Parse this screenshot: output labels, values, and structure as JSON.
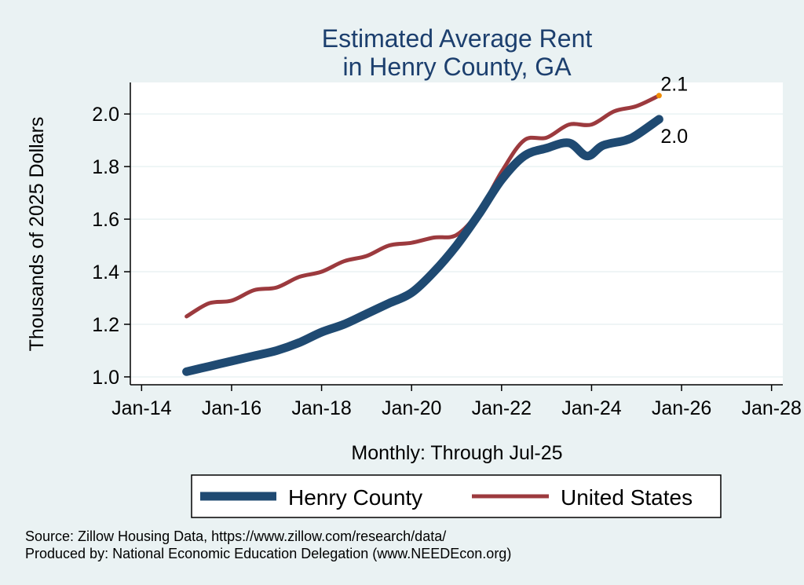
{
  "chart_data": {
    "type": "line",
    "title": [
      "Estimated Average Rent",
      "in Henry County, GA"
    ],
    "xlabel": "Monthly: Through Jul-25",
    "ylabel": "Thousands of 2025 Dollars",
    "ylim": [
      0.97,
      2.12
    ],
    "yticks": [
      1.0,
      1.2,
      1.4,
      1.6,
      1.8,
      2.0
    ],
    "ytick_labels": [
      "1.0",
      "1.2",
      "1.4",
      "1.6",
      "1.8",
      "2.0"
    ],
    "xlim": [
      2013.75,
      2028.25
    ],
    "xticks": [
      2014,
      2016,
      2018,
      2020,
      2022,
      2024,
      2026,
      2028
    ],
    "xtick_labels": [
      "Jan-14",
      "Jan-16",
      "Jan-18",
      "Jan-20",
      "Jan-22",
      "Jan-24",
      "Jan-26",
      "Jan-28"
    ],
    "grid": true,
    "legend_position": "bottom",
    "series": [
      {
        "name": "Henry County",
        "color": "#1f4a72",
        "end_label": "2.0",
        "points": [
          [
            2015.0,
            1.02
          ],
          [
            2015.5,
            1.04
          ],
          [
            2016.0,
            1.06
          ],
          [
            2016.5,
            1.08
          ],
          [
            2017.0,
            1.1
          ],
          [
            2017.5,
            1.13
          ],
          [
            2018.0,
            1.17
          ],
          [
            2018.5,
            1.2
          ],
          [
            2019.0,
            1.24
          ],
          [
            2019.5,
            1.28
          ],
          [
            2020.0,
            1.32
          ],
          [
            2020.5,
            1.4
          ],
          [
            2021.0,
            1.5
          ],
          [
            2021.5,
            1.62
          ],
          [
            2022.0,
            1.75
          ],
          [
            2022.5,
            1.84
          ],
          [
            2023.0,
            1.87
          ],
          [
            2023.5,
            1.89
          ],
          [
            2023.9,
            1.84
          ],
          [
            2024.25,
            1.88
          ],
          [
            2024.75,
            1.9
          ],
          [
            2025.0,
            1.92
          ],
          [
            2025.5,
            1.98
          ]
        ]
      },
      {
        "name": "United States",
        "color": "#9c3a3e",
        "end_label": "2.1",
        "points": [
          [
            2015.0,
            1.23
          ],
          [
            2015.5,
            1.28
          ],
          [
            2016.0,
            1.29
          ],
          [
            2016.5,
            1.33
          ],
          [
            2017.0,
            1.34
          ],
          [
            2017.5,
            1.38
          ],
          [
            2018.0,
            1.4
          ],
          [
            2018.5,
            1.44
          ],
          [
            2019.0,
            1.46
          ],
          [
            2019.5,
            1.5
          ],
          [
            2020.0,
            1.51
          ],
          [
            2020.5,
            1.53
          ],
          [
            2021.0,
            1.54
          ],
          [
            2021.5,
            1.63
          ],
          [
            2022.0,
            1.78
          ],
          [
            2022.5,
            1.9
          ],
          [
            2023.0,
            1.91
          ],
          [
            2023.5,
            1.96
          ],
          [
            2024.0,
            1.96
          ],
          [
            2024.5,
            2.01
          ],
          [
            2025.0,
            2.03
          ],
          [
            2025.5,
            2.07
          ]
        ]
      }
    ]
  },
  "notes": {
    "source": "Source: Zillow Housing Data, https://www.zillow.com/research/data/",
    "produced": "Produced by: National Economic Education Delegation (www.NEEDEcon.org)"
  }
}
